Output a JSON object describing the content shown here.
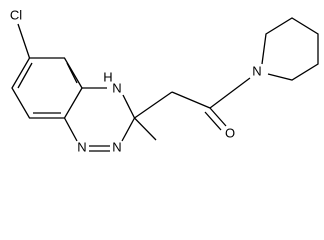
{
  "atoms": {
    "chlorine": "Cl",
    "nh_hydrogen": "H",
    "nh_nitrogen": "N",
    "azo_nitrogen_left": "N",
    "azo_nitrogen_right": "N",
    "carbonyl_oxygen": "O",
    "amide_nitrogen": "N"
  }
}
